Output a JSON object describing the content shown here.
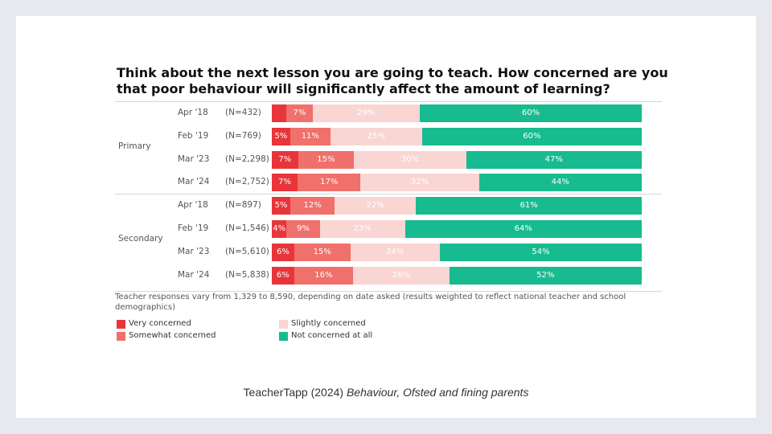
{
  "chart_data": {
    "type": "bar",
    "orientation": "horizontal",
    "stacked": true,
    "percent": true,
    "title": "Think about the next lesson you are going to teach. How concerned are you that poor behaviour will significantly affect the amount of learning?",
    "xlim": [
      0,
      100
    ],
    "groups": [
      {
        "name": "Primary",
        "rows": [
          {
            "date": "Apr '18",
            "n": "(N=432)",
            "values": [
              4,
              7,
              29,
              60
            ],
            "labels": [
              "",
              "7%",
              "29%",
              "60%"
            ]
          },
          {
            "date": "Feb '19",
            "n": "(N=769)",
            "values": [
              5,
              11,
              25,
              60
            ],
            "labels": [
              "5%",
              "11%",
              "25%",
              "60%"
            ]
          },
          {
            "date": "Mar '23",
            "n": "(N=2,298)",
            "values": [
              7,
              15,
              30,
              47
            ],
            "labels": [
              "7%",
              "15%",
              "30%",
              "47%"
            ]
          },
          {
            "date": "Mar '24",
            "n": "(N=2,752)",
            "values": [
              7,
              17,
              32,
              44
            ],
            "labels": [
              "7%",
              "17%",
              "32%",
              "44%"
            ]
          }
        ]
      },
      {
        "name": "Secondary",
        "rows": [
          {
            "date": "Apr '18",
            "n": "(N=897)",
            "values": [
              5,
              12,
              22,
              61
            ],
            "labels": [
              "5%",
              "12%",
              "22%",
              "61%"
            ]
          },
          {
            "date": "Feb '19",
            "n": "(N=1,546)",
            "values": [
              4,
              9,
              23,
              64
            ],
            "labels": [
              "4%",
              "9%",
              "23%",
              "64%"
            ]
          },
          {
            "date": "Mar '23",
            "n": "(N=5,610)",
            "values": [
              6,
              15,
              24,
              54
            ],
            "labels": [
              "6%",
              "15%",
              "24%",
              "54%"
            ]
          },
          {
            "date": "Mar '24",
            "n": "(N=5,838)",
            "values": [
              6,
              16,
              26,
              52
            ],
            "labels": [
              "6%",
              "16%",
              "26%",
              "52%"
            ]
          }
        ]
      }
    ],
    "series": [
      {
        "name": "Very concerned",
        "color": "#e8353a"
      },
      {
        "name": "Somewhat concerned",
        "color": "#f0706b"
      },
      {
        "name": "Slightly concerned",
        "color": "#f9d5d3"
      },
      {
        "name": "Not concerned at all",
        "color": "#17bb8f"
      }
    ],
    "note": "Teacher responses vary from 1,329 to 8,590, depending on date asked (results weighted to reflect national teacher and school demographics)",
    "legend_position": "bottom"
  },
  "caption": {
    "prefix": "TeacherTapp (2024) ",
    "italic": "Behaviour, Ofsted and fining parents"
  }
}
